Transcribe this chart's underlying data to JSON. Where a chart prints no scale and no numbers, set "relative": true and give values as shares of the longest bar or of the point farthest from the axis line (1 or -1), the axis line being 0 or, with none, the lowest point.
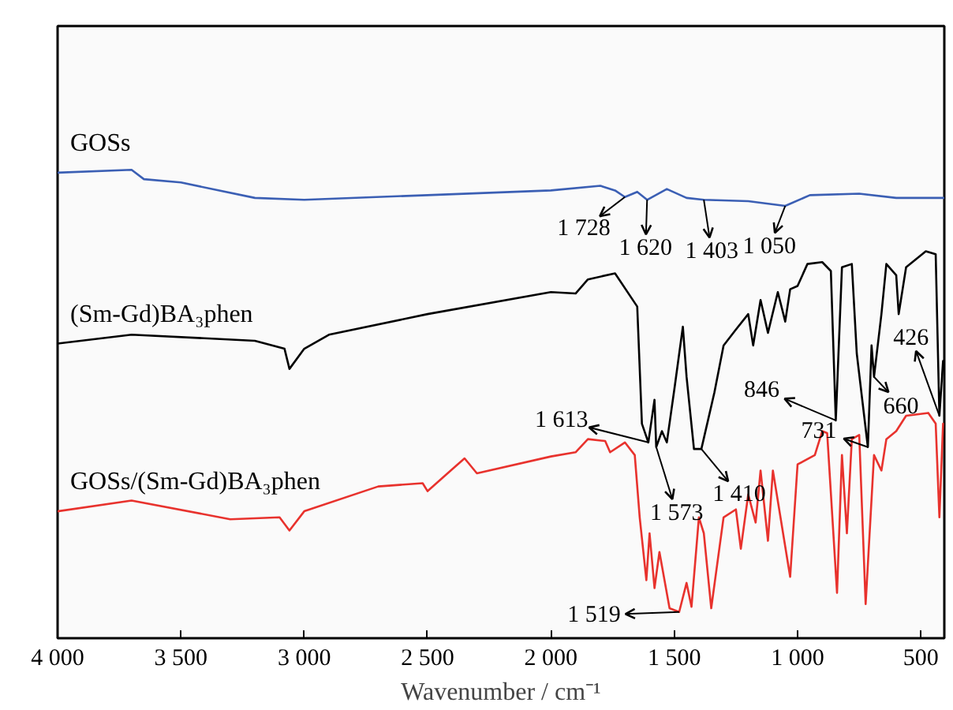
{
  "chart_data": {
    "type": "line",
    "relative": true,
    "xlabel": "Wavenumber / cm⁻¹",
    "xlim": [
      4000,
      405
    ],
    "xticks": [
      {
        "value": 4000,
        "label": "4 000"
      },
      {
        "value": 3500,
        "label": "3 500"
      },
      {
        "value": 3000,
        "label": "3 000"
      },
      {
        "value": 2500,
        "label": "2 500"
      },
      {
        "value": 2000,
        "label": "2 000"
      },
      {
        "value": 1500,
        "label": "1 500"
      },
      {
        "value": 1000,
        "label": "1 000"
      },
      500
    ],
    "tick_labels": "x",
    "grid": false,
    "legend": false,
    "marker": "none",
    "line_style": "solid",
    "series": [
      {
        "name": "GOSs",
        "color": "#3b5fb4",
        "x": [
          4000,
          3700,
          3650,
          3500,
          3200,
          3000,
          2500,
          2000,
          1800,
          1740,
          1700,
          1650,
          1610,
          1530,
          1450,
          1380,
          1200,
          1050,
          950,
          750,
          600,
          405
        ],
        "values": [
          0.994,
          1,
          0.98,
          0.973,
          0.94,
          0.936,
          0.946,
          0.956,
          0.966,
          0.956,
          0.942,
          0.953,
          0.936,
          0.959,
          0.94,
          0.936,
          0.933,
          0.923,
          0.946,
          0.949,
          0.94,
          0.94
        ]
      },
      {
        "name": "(Sm-Gd)BA₃phen",
        "color": "#000000",
        "x": [
          4000,
          3700,
          3200,
          3080,
          3060,
          3000,
          2900,
          2500,
          2000,
          1900,
          1850,
          1740,
          1650,
          1631,
          1605,
          1580,
          1573,
          1550,
          1530,
          1497,
          1465,
          1450,
          1420,
          1390,
          1337,
          1300,
          1250,
          1200,
          1180,
          1150,
          1120,
          1080,
          1050,
          1030,
          1000,
          960,
          900,
          865,
          845,
          820,
          780,
          760,
          715,
          700,
          690,
          660,
          640,
          600,
          590,
          560,
          480,
          440,
          425,
          410
        ],
        "values": [
          0.629,
          0.648,
          0.635,
          0.618,
          0.575,
          0.618,
          0.648,
          0.692,
          0.739,
          0.736,
          0.766,
          0.779,
          0.708,
          0.458,
          0.418,
          0.509,
          0.408,
          0.442,
          0.418,
          0.541,
          0.665,
          0.558,
          0.404,
          0.404,
          0.525,
          0.625,
          0.659,
          0.692,
          0.625,
          0.722,
          0.652,
          0.739,
          0.676,
          0.745,
          0.752,
          0.799,
          0.803,
          0.784,
          0.465,
          0.792,
          0.799,
          0.608,
          0.408,
          0.625,
          0.558,
          0.692,
          0.799,
          0.775,
          0.692,
          0.792,
          0.826,
          0.82,
          0.475,
          0.592
        ]
      },
      {
        "name": "GOSs/(Sm-Gd)BA₃phen",
        "color": "#e8322d",
        "x": [
          4000,
          3700,
          3300,
          3100,
          3060,
          3000,
          2700,
          2520,
          2500,
          2400,
          2350,
          2300,
          2000,
          1900,
          1850,
          1780,
          1760,
          1700,
          1660,
          1640,
          1613,
          1600,
          1580,
          1560,
          1519,
          1480,
          1450,
          1430,
          1400,
          1380,
          1350,
          1300,
          1250,
          1230,
          1200,
          1170,
          1150,
          1120,
          1100,
          1030,
          1000,
          930,
          900,
          880,
          840,
          820,
          800,
          780,
          750,
          724,
          690,
          660,
          640,
          600,
          560,
          470,
          440,
          425,
          410
        ],
        "values": [
          0.271,
          0.294,
          0.254,
          0.258,
          0.23,
          0.271,
          0.324,
          0.331,
          0.314,
          0.361,
          0.384,
          0.352,
          0.388,
          0.397,
          0.425,
          0.421,
          0.397,
          0.418,
          0.391,
          0.258,
          0.124,
          0.224,
          0.107,
          0.184,
          0.064,
          0.056,
          0.118,
          0.067,
          0.258,
          0.224,
          0.064,
          0.258,
          0.275,
          0.191,
          0.307,
          0.247,
          0.358,
          0.208,
          0.358,
          0.131,
          0.371,
          0.391,
          0.442,
          0.438,
          0.097,
          0.391,
          0.224,
          0.425,
          0.434,
          0.073,
          0.391,
          0.358,
          0.425,
          0.442,
          0.475,
          0.481,
          0.458,
          0.258,
          0.458
        ]
      }
    ],
    "annotations": [
      {
        "text": "1 728",
        "x": 1700,
        "y": 0.942
      },
      {
        "text": "1 620",
        "x": 1610,
        "y": 0.936
      },
      {
        "text": "1 403",
        "x": 1380,
        "y": 0.936
      },
      {
        "text": "1 050",
        "x": 1050,
        "y": 0.923
      },
      {
        "text": "426",
        "x": 425,
        "y": 0.475
      },
      {
        "text": "846",
        "x": 845,
        "y": 0.465
      },
      {
        "text": "660",
        "x": 690,
        "y": 0.558
      },
      {
        "text": "731",
        "x": 715,
        "y": 0.408
      },
      {
        "text": "1 613",
        "x": 1605,
        "y": 0.418
      },
      {
        "text": "1 573",
        "x": 1573,
        "y": 0.408
      },
      {
        "text": "1 410",
        "x": 1390,
        "y": 0.404
      },
      {
        "text": "1 519",
        "x": 1480,
        "y": 0.056
      }
    ]
  }
}
